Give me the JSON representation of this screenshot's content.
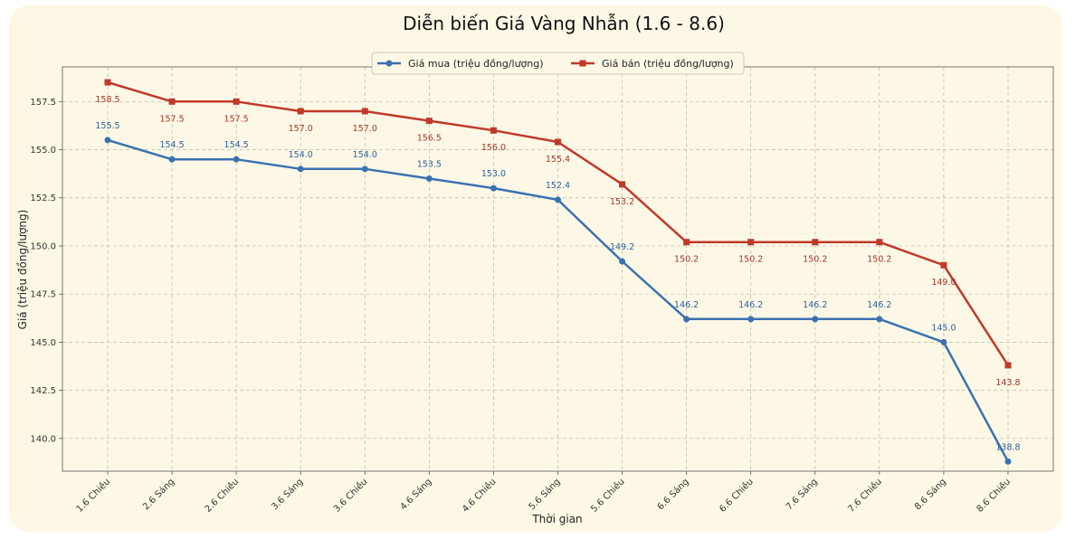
{
  "chart_data": {
    "type": "line",
    "title": "Diễn biến Giá Vàng Nhẫn (1.6 - 8.6)",
    "xlabel": "Thời gian",
    "ylabel": "Giá (triệu đồng/lượng)",
    "categories": [
      "1.6 Chiều",
      "2.6 Sáng",
      "2.6 Chiều",
      "3.6 Sáng",
      "3.6 Chiều",
      "4.6 Sáng",
      "4.6 Chiều",
      "5.6 Sáng",
      "5.6 Chiều",
      "6.6 Sáng",
      "6.6 Chiều",
      "7.6 Sáng",
      "7.6 Chiều",
      "8.6 Sáng",
      "8.6 Chiều"
    ],
    "ylim": [
      138.3,
      159.3
    ],
    "yticks": [
      "140.0",
      "142.5",
      "145.0",
      "147.5",
      "150.0",
      "152.5",
      "155.0",
      "157.5"
    ],
    "grid": true,
    "legend_position": "top-center",
    "series": [
      {
        "name": "Giá mua (triệu đồng/lượng)",
        "color": "#3a72b0",
        "marker": "circle",
        "values": [
          155.5,
          154.5,
          154.5,
          154.0,
          154.0,
          153.5,
          153.0,
          152.4,
          149.2,
          146.2,
          146.2,
          146.2,
          146.2,
          145.0,
          138.8
        ],
        "labels": [
          "155.5",
          "154.5",
          "154.5",
          "154.0",
          "154.0",
          "153.5",
          "153.0",
          "152.4",
          "149.2",
          "146.2",
          "146.2",
          "146.2",
          "146.2",
          "145.0",
          "138.8"
        ]
      },
      {
        "name": "Giá bán (triệu đồng/lượng)",
        "color": "#c0392b",
        "marker": "square",
        "values": [
          158.5,
          157.5,
          157.5,
          157.0,
          157.0,
          156.5,
          156.0,
          155.4,
          153.2,
          150.2,
          150.2,
          150.2,
          150.2,
          149.0,
          143.8
        ],
        "labels": [
          "158.5",
          "157.5",
          "157.5",
          "157.0",
          "157.0",
          "156.5",
          "156.0",
          "155.4",
          "153.2",
          "150.2",
          "150.2",
          "150.2",
          "150.2",
          "149.0",
          "143.8"
        ]
      }
    ]
  }
}
